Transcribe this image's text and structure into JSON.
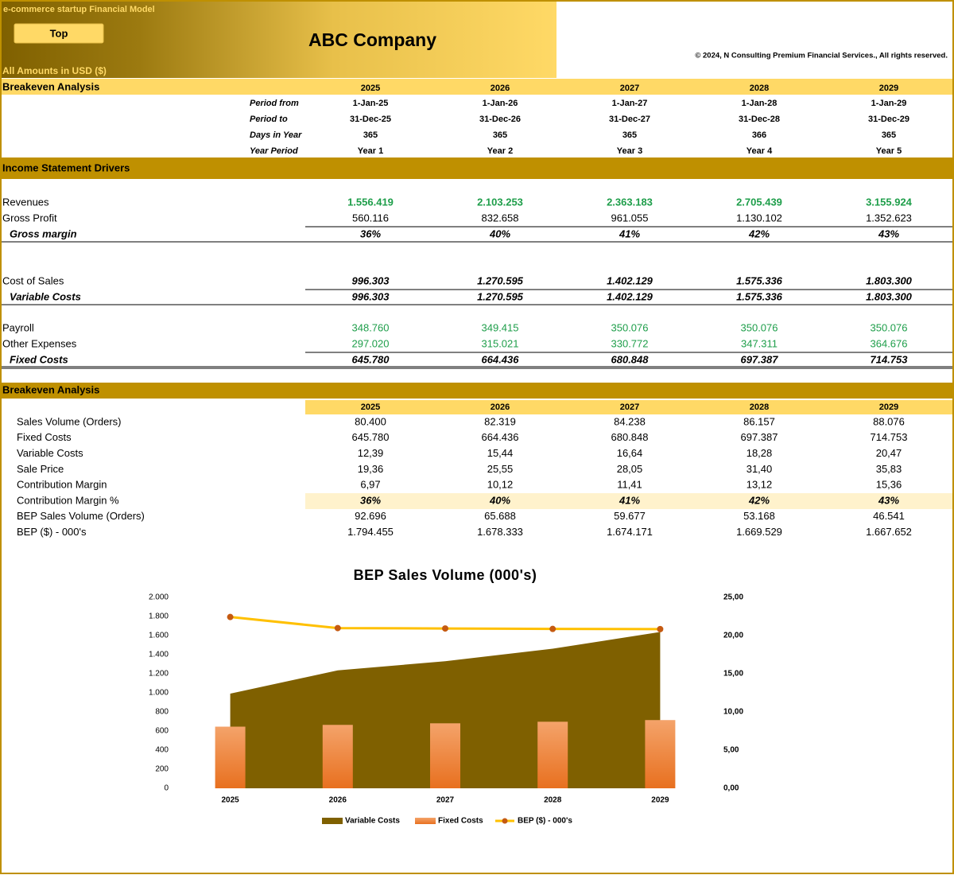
{
  "header": {
    "model_title": "e-commerce startup Financial  Model",
    "button": "Top",
    "company": "ABC Company",
    "copyright": "© 2024, N Consulting Premium Financial Services., All rights reserved.",
    "currency_note": "All Amounts in  USD ($)"
  },
  "periods": {
    "title": "Breakeven Analysis",
    "years": [
      "2025",
      "2026",
      "2027",
      "2028",
      "2029"
    ],
    "rows": [
      {
        "label": "Period from",
        "values": [
          "1-Jan-25",
          "1-Jan-26",
          "1-Jan-27",
          "1-Jan-28",
          "1-Jan-29"
        ]
      },
      {
        "label": "Period to",
        "values": [
          "31-Dec-25",
          "31-Dec-26",
          "31-Dec-27",
          "31-Dec-28",
          "31-Dec-29"
        ]
      },
      {
        "label": "Days in Year",
        "values": [
          "365",
          "365",
          "365",
          "366",
          "365"
        ]
      },
      {
        "label": "Year Period",
        "values": [
          "Year 1",
          "Year 2",
          "Year 3",
          "Year 4",
          "Year 5"
        ]
      }
    ]
  },
  "drivers": {
    "title": "Income Statement Drivers",
    "rows": [
      {
        "label": "Revenues",
        "values": [
          "1.556.419",
          "2.103.253",
          "2.363.183",
          "2.705.439",
          "3.155.924"
        ]
      },
      {
        "label": "Gross Profit",
        "values": [
          "560.116",
          "832.658",
          "961.055",
          "1.130.102",
          "1.352.623"
        ]
      },
      {
        "label": "Gross margin",
        "values": [
          "36%",
          "40%",
          "41%",
          "42%",
          "43%"
        ]
      },
      {
        "label": "Cost of Sales",
        "values": [
          "996.303",
          "1.270.595",
          "1.402.129",
          "1.575.336",
          "1.803.300"
        ]
      },
      {
        "label": "Variable Costs",
        "values": [
          "996.303",
          "1.270.595",
          "1.402.129",
          "1.575.336",
          "1.803.300"
        ]
      },
      {
        "label": "Payroll",
        "values": [
          "348.760",
          "349.415",
          "350.076",
          "350.076",
          "350.076"
        ]
      },
      {
        "label": "Other Expenses",
        "values": [
          "297.020",
          "315.021",
          "330.772",
          "347.311",
          "364.676"
        ]
      },
      {
        "label": "Fixed Costs",
        "values": [
          "645.780",
          "664.436",
          "680.848",
          "697.387",
          "714.753"
        ]
      }
    ]
  },
  "breakeven": {
    "title": "Breakeven Analysis",
    "years": [
      "2025",
      "2026",
      "2027",
      "2028",
      "2029"
    ],
    "rows": [
      {
        "label": "Sales Volume (Orders)",
        "values": [
          "80.400",
          "82.319",
          "84.238",
          "86.157",
          "88.076"
        ]
      },
      {
        "label": "Fixed Costs",
        "values": [
          "645.780",
          "664.436",
          "680.848",
          "697.387",
          "714.753"
        ]
      },
      {
        "label": "Variable Costs",
        "values": [
          "12,39",
          "15,44",
          "16,64",
          "18,28",
          "20,47"
        ]
      },
      {
        "label": "Sale Price",
        "values": [
          "19,36",
          "25,55",
          "28,05",
          "31,40",
          "35,83"
        ]
      },
      {
        "label": "Contribution Margin",
        "values": [
          "6,97",
          "10,12",
          "11,41",
          "13,12",
          "15,36"
        ]
      },
      {
        "label": "Contribution Margin %",
        "values": [
          "36%",
          "40%",
          "41%",
          "42%",
          "43%"
        ]
      },
      {
        "label": "BEP Sales Volume (Orders)",
        "values": [
          "92.696",
          "65.688",
          "59.677",
          "53.168",
          "46.541"
        ]
      },
      {
        "label": "BEP ($) - 000's",
        "values": [
          "1.794.455",
          "1.678.333",
          "1.674.171",
          "1.669.529",
          "1.667.652"
        ]
      }
    ]
  },
  "chart_data": {
    "type": "combo",
    "title": "BEP  Sales  Volume  (000's)",
    "categories": [
      "2025",
      "2026",
      "2027",
      "2028",
      "2029"
    ],
    "series": [
      {
        "name": "Variable Costs",
        "type": "area",
        "axis": "y2",
        "color": "#7f6000",
        "values": [
          12.39,
          15.44,
          16.64,
          18.28,
          20.47
        ]
      },
      {
        "name": "Fixed Costs",
        "type": "bar",
        "color": "#ed7d31",
        "values": [
          645.78,
          664.436,
          680.848,
          697.387,
          714.753
        ]
      },
      {
        "name": "BEP ($) - 000's",
        "type": "line",
        "color": "#ffc000",
        "marker_color": "#c55a11",
        "values": [
          1794.455,
          1678.333,
          1674.171,
          1669.529,
          1667.652
        ]
      }
    ],
    "ylim": [
      0,
      2000
    ],
    "yticks": [
      0,
      200,
      400,
      600,
      800,
      {
        "value": 1000,
        "label": "1.000"
      },
      {
        "value": 1200,
        "label": "1.200"
      },
      {
        "value": 1400,
        "label": "1.400"
      },
      {
        "value": 1600,
        "label": "1.600"
      },
      {
        "value": 1800,
        "label": "1.800"
      },
      {
        "value": 2000,
        "label": "2.000"
      }
    ],
    "y2lim": [
      0,
      25
    ],
    "y2ticks": [
      {
        "value": 0,
        "label": "0,00"
      },
      {
        "value": 5,
        "label": "5,00"
      },
      {
        "value": 10,
        "label": "10,00"
      },
      {
        "value": 15,
        "label": "15,00"
      },
      {
        "value": 20,
        "label": "20,00"
      },
      {
        "value": 25,
        "label": "25,00"
      }
    ],
    "grid": false,
    "legend": "bottom"
  }
}
